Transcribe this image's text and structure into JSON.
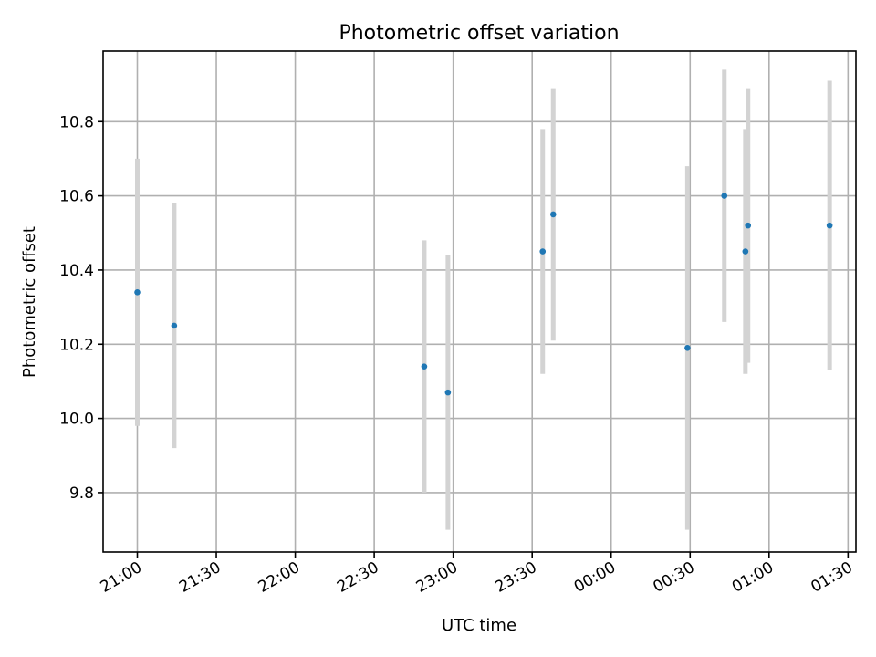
{
  "chart_data": {
    "type": "scatter",
    "title": "Photometric offset variation",
    "xlabel": "UTC time",
    "ylabel": "Photometric offset",
    "x_ticks": [
      "21:00",
      "21:30",
      "22:00",
      "22:30",
      "23:00",
      "23:30",
      "00:00",
      "00:30",
      "01:00",
      "01:30"
    ],
    "y_ticks": [
      "9.8",
      "10.0",
      "10.2",
      "10.4",
      "10.6",
      "10.8"
    ],
    "xlim": [
      "20:47",
      "01:33"
    ],
    "ylim": [
      9.64,
      10.99
    ],
    "grid": true,
    "colors": {
      "point": "#1f77b4",
      "errorbar": "#d3d3d3"
    },
    "points": [
      {
        "x": "21:00",
        "y": 10.34,
        "yerr": 0.36
      },
      {
        "x": "21:14",
        "y": 10.25,
        "yerr": 0.33
      },
      {
        "x": "22:49",
        "y": 10.14,
        "yerr": 0.34
      },
      {
        "x": "22:58",
        "y": 10.07,
        "yerr": 0.37
      },
      {
        "x": "23:34",
        "y": 10.45,
        "yerr": 0.33
      },
      {
        "x": "23:38",
        "y": 10.55,
        "yerr": 0.34
      },
      {
        "x": "00:29",
        "y": 10.19,
        "yerr": 0.49
      },
      {
        "x": "00:43",
        "y": 10.6,
        "yerr": 0.34
      },
      {
        "x": "00:51",
        "y": 10.45,
        "yerr": 0.33
      },
      {
        "x": "00:52",
        "y": 10.52,
        "yerr": 0.37
      },
      {
        "x": "01:23",
        "y": 10.52,
        "yerr": 0.39
      }
    ]
  }
}
